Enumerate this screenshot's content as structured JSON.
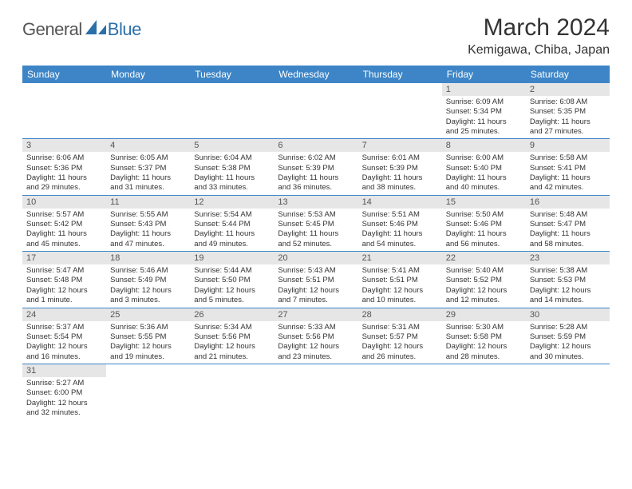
{
  "logo": {
    "text1": "General",
    "text2": "Blue"
  },
  "title": "March 2024",
  "location": "Kemigawa, Chiba, Japan",
  "colors": {
    "header_bg": "#3d85c6",
    "header_text": "#ffffff",
    "daynum_bg": "#e6e6e6",
    "daynum_text": "#555555",
    "body_text": "#333333",
    "border": "#3d85c6",
    "logo_blue": "#2b6fa8"
  },
  "weekdays": [
    "Sunday",
    "Monday",
    "Tuesday",
    "Wednesday",
    "Thursday",
    "Friday",
    "Saturday"
  ],
  "weeks": [
    [
      null,
      null,
      null,
      null,
      null,
      {
        "n": "1",
        "sr": "Sunrise: 6:09 AM",
        "ss": "Sunset: 5:34 PM",
        "d1": "Daylight: 11 hours",
        "d2": "and 25 minutes."
      },
      {
        "n": "2",
        "sr": "Sunrise: 6:08 AM",
        "ss": "Sunset: 5:35 PM",
        "d1": "Daylight: 11 hours",
        "d2": "and 27 minutes."
      }
    ],
    [
      {
        "n": "3",
        "sr": "Sunrise: 6:06 AM",
        "ss": "Sunset: 5:36 PM",
        "d1": "Daylight: 11 hours",
        "d2": "and 29 minutes."
      },
      {
        "n": "4",
        "sr": "Sunrise: 6:05 AM",
        "ss": "Sunset: 5:37 PM",
        "d1": "Daylight: 11 hours",
        "d2": "and 31 minutes."
      },
      {
        "n": "5",
        "sr": "Sunrise: 6:04 AM",
        "ss": "Sunset: 5:38 PM",
        "d1": "Daylight: 11 hours",
        "d2": "and 33 minutes."
      },
      {
        "n": "6",
        "sr": "Sunrise: 6:02 AM",
        "ss": "Sunset: 5:39 PM",
        "d1": "Daylight: 11 hours",
        "d2": "and 36 minutes."
      },
      {
        "n": "7",
        "sr": "Sunrise: 6:01 AM",
        "ss": "Sunset: 5:39 PM",
        "d1": "Daylight: 11 hours",
        "d2": "and 38 minutes."
      },
      {
        "n": "8",
        "sr": "Sunrise: 6:00 AM",
        "ss": "Sunset: 5:40 PM",
        "d1": "Daylight: 11 hours",
        "d2": "and 40 minutes."
      },
      {
        "n": "9",
        "sr": "Sunrise: 5:58 AM",
        "ss": "Sunset: 5:41 PM",
        "d1": "Daylight: 11 hours",
        "d2": "and 42 minutes."
      }
    ],
    [
      {
        "n": "10",
        "sr": "Sunrise: 5:57 AM",
        "ss": "Sunset: 5:42 PM",
        "d1": "Daylight: 11 hours",
        "d2": "and 45 minutes."
      },
      {
        "n": "11",
        "sr": "Sunrise: 5:55 AM",
        "ss": "Sunset: 5:43 PM",
        "d1": "Daylight: 11 hours",
        "d2": "and 47 minutes."
      },
      {
        "n": "12",
        "sr": "Sunrise: 5:54 AM",
        "ss": "Sunset: 5:44 PM",
        "d1": "Daylight: 11 hours",
        "d2": "and 49 minutes."
      },
      {
        "n": "13",
        "sr": "Sunrise: 5:53 AM",
        "ss": "Sunset: 5:45 PM",
        "d1": "Daylight: 11 hours",
        "d2": "and 52 minutes."
      },
      {
        "n": "14",
        "sr": "Sunrise: 5:51 AM",
        "ss": "Sunset: 5:46 PM",
        "d1": "Daylight: 11 hours",
        "d2": "and 54 minutes."
      },
      {
        "n": "15",
        "sr": "Sunrise: 5:50 AM",
        "ss": "Sunset: 5:46 PM",
        "d1": "Daylight: 11 hours",
        "d2": "and 56 minutes."
      },
      {
        "n": "16",
        "sr": "Sunrise: 5:48 AM",
        "ss": "Sunset: 5:47 PM",
        "d1": "Daylight: 11 hours",
        "d2": "and 58 minutes."
      }
    ],
    [
      {
        "n": "17",
        "sr": "Sunrise: 5:47 AM",
        "ss": "Sunset: 5:48 PM",
        "d1": "Daylight: 12 hours",
        "d2": "and 1 minute."
      },
      {
        "n": "18",
        "sr": "Sunrise: 5:46 AM",
        "ss": "Sunset: 5:49 PM",
        "d1": "Daylight: 12 hours",
        "d2": "and 3 minutes."
      },
      {
        "n": "19",
        "sr": "Sunrise: 5:44 AM",
        "ss": "Sunset: 5:50 PM",
        "d1": "Daylight: 12 hours",
        "d2": "and 5 minutes."
      },
      {
        "n": "20",
        "sr": "Sunrise: 5:43 AM",
        "ss": "Sunset: 5:51 PM",
        "d1": "Daylight: 12 hours",
        "d2": "and 7 minutes."
      },
      {
        "n": "21",
        "sr": "Sunrise: 5:41 AM",
        "ss": "Sunset: 5:51 PM",
        "d1": "Daylight: 12 hours",
        "d2": "and 10 minutes."
      },
      {
        "n": "22",
        "sr": "Sunrise: 5:40 AM",
        "ss": "Sunset: 5:52 PM",
        "d1": "Daylight: 12 hours",
        "d2": "and 12 minutes."
      },
      {
        "n": "23",
        "sr": "Sunrise: 5:38 AM",
        "ss": "Sunset: 5:53 PM",
        "d1": "Daylight: 12 hours",
        "d2": "and 14 minutes."
      }
    ],
    [
      {
        "n": "24",
        "sr": "Sunrise: 5:37 AM",
        "ss": "Sunset: 5:54 PM",
        "d1": "Daylight: 12 hours",
        "d2": "and 16 minutes."
      },
      {
        "n": "25",
        "sr": "Sunrise: 5:36 AM",
        "ss": "Sunset: 5:55 PM",
        "d1": "Daylight: 12 hours",
        "d2": "and 19 minutes."
      },
      {
        "n": "26",
        "sr": "Sunrise: 5:34 AM",
        "ss": "Sunset: 5:56 PM",
        "d1": "Daylight: 12 hours",
        "d2": "and 21 minutes."
      },
      {
        "n": "27",
        "sr": "Sunrise: 5:33 AM",
        "ss": "Sunset: 5:56 PM",
        "d1": "Daylight: 12 hours",
        "d2": "and 23 minutes."
      },
      {
        "n": "28",
        "sr": "Sunrise: 5:31 AM",
        "ss": "Sunset: 5:57 PM",
        "d1": "Daylight: 12 hours",
        "d2": "and 26 minutes."
      },
      {
        "n": "29",
        "sr": "Sunrise: 5:30 AM",
        "ss": "Sunset: 5:58 PM",
        "d1": "Daylight: 12 hours",
        "d2": "and 28 minutes."
      },
      {
        "n": "30",
        "sr": "Sunrise: 5:28 AM",
        "ss": "Sunset: 5:59 PM",
        "d1": "Daylight: 12 hours",
        "d2": "and 30 minutes."
      }
    ],
    [
      {
        "n": "31",
        "sr": "Sunrise: 5:27 AM",
        "ss": "Sunset: 6:00 PM",
        "d1": "Daylight: 12 hours",
        "d2": "and 32 minutes."
      },
      null,
      null,
      null,
      null,
      null,
      null
    ]
  ]
}
